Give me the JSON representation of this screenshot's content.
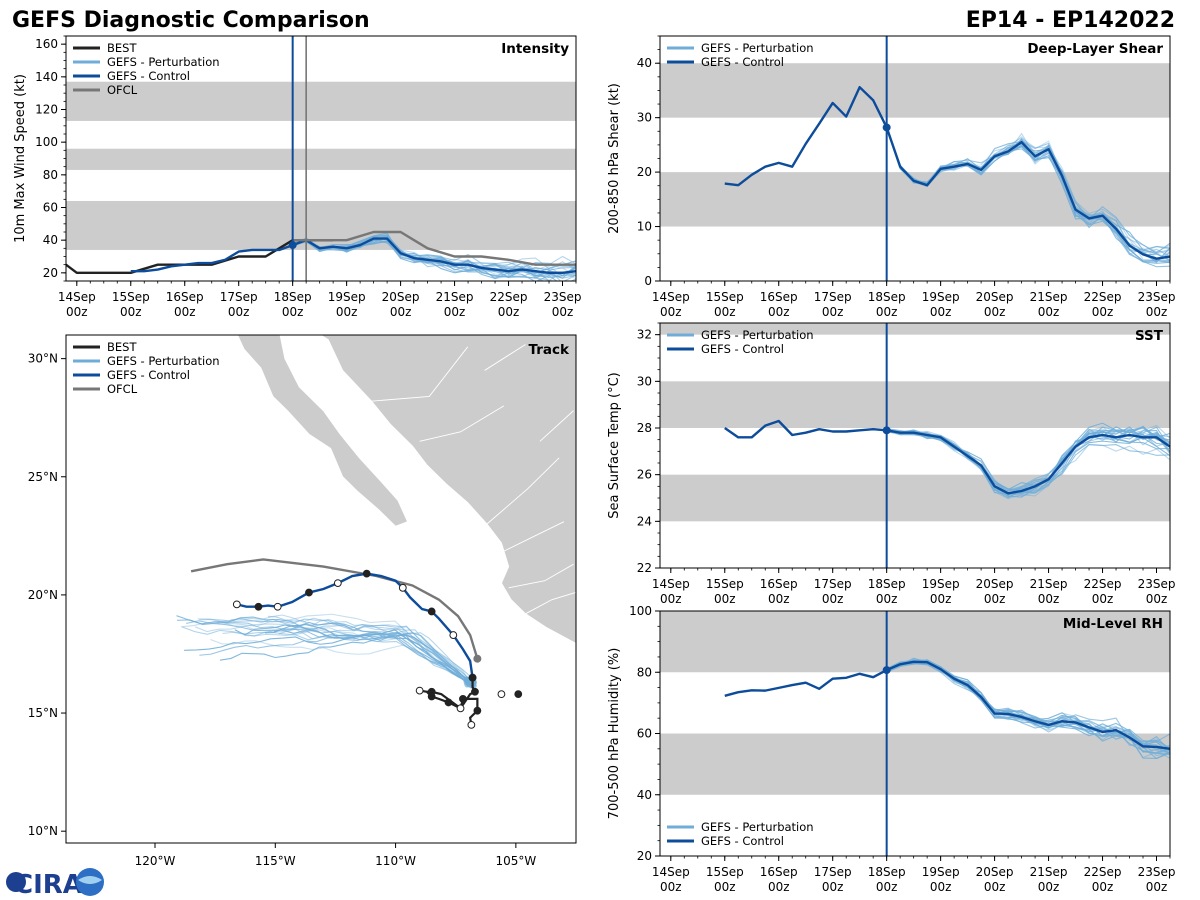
{
  "header": {
    "title": "GEFS Diagnostic Comparison",
    "storm_id": "EP14 - EP142022"
  },
  "logo": {
    "text": "CIRA"
  },
  "colors": {
    "best": "#222222",
    "perturbation": "#6fadd8",
    "control": "#0d4c9a",
    "ofcl": "#777777",
    "band": "#cccccc",
    "land": "#cccccc"
  },
  "time_axis": {
    "days": [
      "14Sep",
      "15Sep",
      "16Sep",
      "17Sep",
      "18Sep",
      "19Sep",
      "20Sep",
      "21Sep",
      "22Sep",
      "23Sep"
    ],
    "hour": "00z"
  },
  "chart_data": [
    {
      "id": "intensity",
      "type": "line",
      "title": "Intensity",
      "ylabel": "10m Max Wind Speed (kt)",
      "ylim": [
        15,
        165
      ],
      "yticks": [
        20,
        40,
        60,
        80,
        100,
        120,
        140,
        160
      ],
      "bands": [
        [
          34,
          64
        ],
        [
          83,
          96
        ],
        [
          113,
          137
        ]
      ],
      "legend": [
        "BEST",
        "GEFS - Perturbation",
        "GEFS - Control",
        "OFCL"
      ],
      "x_units": "days since 13Sep 00z",
      "current_time": 5.0,
      "ofcl_time": 5.25,
      "series": [
        {
          "name": "BEST",
          "x": [
            0.8,
            1.0,
            1.5,
            2.0,
            2.5,
            3.0,
            3.5,
            4.0,
            4.5,
            5.0,
            5.25,
            5.75
          ],
          "values": [
            25,
            20,
            20,
            20,
            25,
            25,
            25,
            30,
            30,
            40,
            40,
            40
          ]
        },
        {
          "name": "GEFS - Control",
          "x": [
            2.0,
            2.25,
            2.5,
            2.75,
            3.0,
            3.25,
            3.5,
            3.75,
            4.0,
            4.25,
            4.5,
            4.75,
            5.0,
            5.25,
            5.5,
            5.75,
            6.0,
            6.25,
            6.5,
            6.75,
            7.0,
            7.25,
            7.5,
            7.75,
            8.0,
            8.25,
            8.5,
            8.75,
            9.0,
            9.25,
            9.5,
            9.75,
            10.0,
            10.25
          ],
          "values": [
            21,
            21,
            22,
            24,
            25,
            26,
            26,
            28,
            33,
            34,
            34,
            34,
            37,
            40,
            35,
            36,
            35,
            37,
            41,
            41,
            32,
            29,
            28,
            27,
            25,
            25,
            23,
            22,
            21,
            22,
            21,
            20,
            20,
            21
          ]
        },
        {
          "name": "OFCL",
          "x": [
            5.0,
            5.25,
            6.0,
            6.5,
            7.0,
            7.25,
            7.5,
            8.0,
            8.5,
            9.0,
            9.5,
            10.0,
            10.25
          ],
          "values": [
            40,
            40,
            40,
            45,
            45,
            40,
            35,
            30,
            30,
            28,
            25,
            25,
            25
          ]
        }
      ]
    },
    {
      "id": "shear",
      "type": "line",
      "title": "Deep-Layer Shear",
      "ylabel": "200-850 hPa Shear (kt)",
      "ylim": [
        0,
        45
      ],
      "yticks": [
        0,
        10,
        20,
        30,
        40
      ],
      "bands": [
        [
          10,
          20
        ],
        [
          30,
          40
        ]
      ],
      "legend": [
        "GEFS - Perturbation",
        "GEFS - Control"
      ],
      "current_time": 5.0,
      "series": [
        {
          "name": "GEFS - Control",
          "x": [
            2.0,
            2.25,
            2.5,
            2.75,
            3.0,
            3.25,
            3.5,
            3.75,
            4.0,
            4.25,
            4.5,
            4.75,
            5.0,
            5.25,
            5.5,
            5.75,
            6.0,
            6.25,
            6.5,
            6.75,
            7.0,
            7.25,
            7.5,
            7.75,
            8.0,
            8.25,
            8.5,
            8.75,
            9.0,
            9.25,
            9.5,
            9.75,
            10.0,
            10.25
          ],
          "values": [
            17.9,
            17.6,
            19.5,
            21.0,
            21.7,
            21.0,
            25.2,
            28.9,
            32.7,
            30.2,
            35.6,
            33.2,
            28.2,
            21.0,
            18.4,
            17.6,
            20.6,
            21.0,
            21.5,
            20.4,
            22.9,
            23.8,
            25.5,
            22.9,
            24.2,
            19.3,
            13.1,
            11.5,
            12.0,
            9.6,
            6.5,
            4.9,
            4.1,
            4.5
          ]
        }
      ]
    },
    {
      "id": "sst",
      "type": "line",
      "title": "SST",
      "ylabel": "Sea Surface Temp (°C)",
      "ylim": [
        22,
        32.5
      ],
      "yticks": [
        22,
        24,
        26,
        28,
        30,
        32
      ],
      "bands": [
        [
          24,
          26
        ],
        [
          28,
          30
        ],
        [
          32,
          32.5
        ]
      ],
      "legend": [
        "GEFS - Perturbation",
        "GEFS - Control"
      ],
      "current_time": 5.0,
      "series": [
        {
          "name": "GEFS - Control",
          "x": [
            2.0,
            2.25,
            2.5,
            2.75,
            3.0,
            3.25,
            3.5,
            3.75,
            4.0,
            4.25,
            4.5,
            4.75,
            5.0,
            5.25,
            5.5,
            5.75,
            6.0,
            6.25,
            6.5,
            6.75,
            7.0,
            7.25,
            7.5,
            7.75,
            8.0,
            8.25,
            8.5,
            8.75,
            9.0,
            9.25,
            9.5,
            9.75,
            10.0,
            10.25
          ],
          "values": [
            28.0,
            27.6,
            27.6,
            28.1,
            28.3,
            27.7,
            27.8,
            27.95,
            27.85,
            27.85,
            27.9,
            27.95,
            27.9,
            27.8,
            27.8,
            27.7,
            27.6,
            27.2,
            26.8,
            26.4,
            25.5,
            25.2,
            25.3,
            25.5,
            25.8,
            26.5,
            27.2,
            27.6,
            27.7,
            27.6,
            27.7,
            27.6,
            27.6,
            27.2
          ]
        }
      ]
    },
    {
      "id": "rh",
      "type": "line",
      "title": "Mid-Level RH",
      "ylabel": "700-500 hPa Humidity (%)",
      "ylim": [
        20,
        100
      ],
      "yticks": [
        20,
        40,
        60,
        80,
        100
      ],
      "bands": [
        [
          40,
          60
        ],
        [
          80,
          100
        ]
      ],
      "legend": [
        "GEFS - Perturbation",
        "GEFS - Control"
      ],
      "current_time": 5.0,
      "series": [
        {
          "name": "GEFS - Control",
          "x": [
            2.0,
            2.25,
            2.5,
            2.75,
            3.0,
            3.25,
            3.5,
            3.75,
            4.0,
            4.25,
            4.5,
            4.75,
            5.0,
            5.25,
            5.5,
            5.75,
            6.0,
            6.25,
            6.5,
            6.75,
            7.0,
            7.25,
            7.5,
            7.75,
            8.0,
            8.25,
            8.5,
            8.75,
            9.0,
            9.25,
            9.5,
            9.75,
            10.0,
            10.25
          ],
          "values": [
            72.3,
            73.5,
            74.1,
            74.0,
            74.9,
            75.8,
            76.6,
            74.6,
            77.9,
            78.2,
            79.5,
            78.4,
            80.7,
            82.6,
            83.4,
            83.3,
            81.0,
            77.9,
            75.8,
            71.9,
            66.5,
            66.4,
            65.4,
            64.0,
            62.8,
            64.0,
            63.6,
            62.0,
            60.5,
            61.1,
            58.7,
            55.8,
            55.6,
            55.0
          ]
        }
      ]
    },
    {
      "id": "track",
      "type": "scatter",
      "title": "Track",
      "legend": [
        "BEST",
        "GEFS - Perturbation",
        "GEFS - Control",
        "OFCL"
      ],
      "lon_range": [
        -123.7,
        -102.5
      ],
      "lat_range": [
        9.5,
        31
      ],
      "lat_ticks": [
        10,
        15,
        20,
        25,
        30
      ],
      "lat_labels": [
        "10°N",
        "15°N",
        "20°N",
        "25°N",
        "30°N"
      ],
      "lon_ticks": [
        -120,
        -115,
        -110,
        -105
      ],
      "lon_labels": [
        "120°W",
        "115°W",
        "110°W",
        "105°W"
      ],
      "series": [
        {
          "name": "BEST",
          "lon": [
            -104.9,
            -105.6,
            -106.85,
            -106.9,
            -106.6,
            -106.6,
            -107.2,
            -107.3,
            -107.8,
            -108.2,
            -108.5,
            -108.7,
            -109.0,
            -108.7,
            -108.5,
            -108.1,
            -107.3,
            -106.9,
            -106.7,
            -106.8,
            -106.8
          ],
          "lat": [
            15.8,
            15.8,
            14.5,
            14.8,
            15.1,
            15.6,
            15.6,
            15.2,
            15.45,
            15.6,
            15.7,
            15.9,
            15.95,
            15.9,
            15.9,
            15.8,
            15.2,
            15.8,
            15.9,
            16.1,
            16.5
          ],
          "open": [
            false,
            true,
            true,
            false,
            false,
            false,
            false,
            true,
            false,
            true,
            false,
            false,
            true,
            false,
            false,
            false,
            true,
            false,
            false,
            false,
            false
          ]
        },
        {
          "name": "GEFS - Control",
          "lon": [
            -106.8,
            -106.9,
            -107.2,
            -107.6,
            -108.2,
            -108.5,
            -108.9,
            -109.4,
            -109.7,
            -110.0,
            -110.6,
            -111.2,
            -111.8,
            -112.4,
            -113.0,
            -113.6,
            -114.3,
            -114.9,
            -115.3,
            -115.7,
            -116.2,
            -116.6
          ],
          "lat": [
            16.5,
            17.2,
            17.7,
            18.3,
            19.0,
            19.3,
            19.4,
            19.9,
            20.3,
            20.6,
            20.8,
            20.9,
            20.8,
            20.5,
            20.25,
            20.1,
            19.7,
            19.5,
            19.55,
            19.5,
            19.5,
            19.6
          ],
          "marker_idx": [
            0,
            3,
            5,
            8,
            11,
            13,
            15,
            17,
            19,
            21
          ]
        },
        {
          "name": "OFCL",
          "lon": [
            -106.6,
            -106.9,
            -107.4,
            -108.2,
            -109.3,
            -110.8,
            -113.0,
            -115.5,
            -117.0,
            -118.5
          ],
          "lat": [
            17.3,
            18.3,
            19.1,
            19.8,
            20.4,
            20.8,
            21.2,
            21.5,
            21.3,
            21.0
          ],
          "marker_idx": [
            0
          ]
        }
      ]
    }
  ]
}
